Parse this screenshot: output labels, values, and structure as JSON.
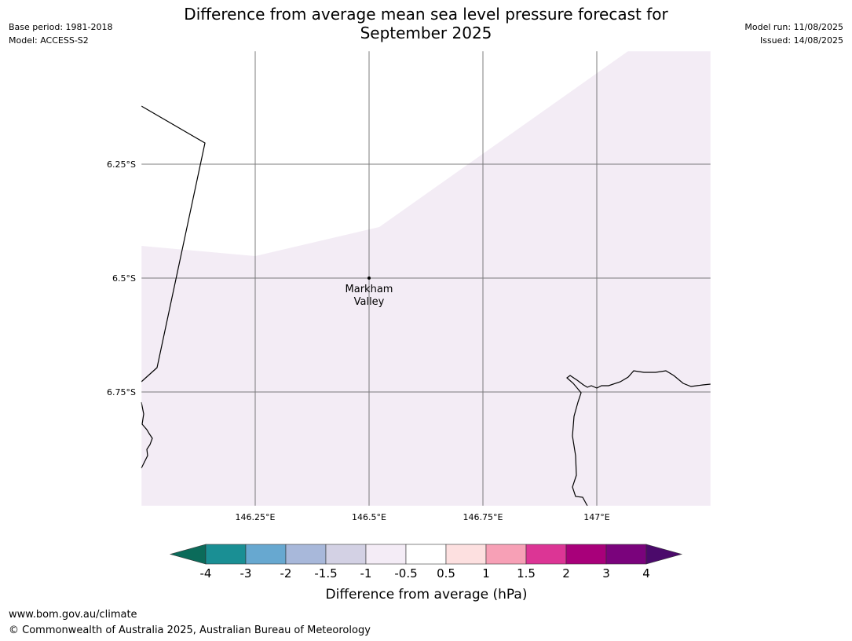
{
  "header": {
    "title_line1": "Difference from average mean sea level pressure forecast for",
    "title_line2": "September 2025",
    "base_period": "Base period: 1981-2018",
    "model": "Model: ACCESS-S2",
    "model_run": "Model run: 11/08/2025",
    "issued": "Issued: 14/08/2025"
  },
  "map": {
    "lon_labels": [
      "146.25°E",
      "146.5°E",
      "146.75°E",
      "147°E"
    ],
    "lat_labels": [
      "6.25°S",
      "6.5°S",
      "6.75°S"
    ],
    "place": {
      "name_line1": "Markham",
      "name_line2": "Valley"
    },
    "colors": {
      "anomaly_fill": "#f3ecf5",
      "gridline": "#666666",
      "coastline": "#000000"
    }
  },
  "colorbar": {
    "title": "Difference from average (hPa)",
    "tick_labels": [
      "-4",
      "-3",
      "-2",
      "-1.5",
      "-1",
      "-0.5",
      "0.5",
      "1",
      "1.5",
      "2",
      "3",
      "4"
    ],
    "under_color": "#0b6b5a",
    "over_color": "#4b0a6b",
    "colors": [
      "#1a8f94",
      "#67a8d0",
      "#a8b8da",
      "#d3d1e4",
      "#f4ecf6",
      "#ffffff",
      "#fde0e0",
      "#f7a0b6",
      "#dc3595",
      "#a8007a",
      "#7a037c"
    ]
  },
  "footer": {
    "url": "www.bom.gov.au/climate",
    "copyright": "© Commonwealth of Australia 2025, Australian Bureau of Meteorology"
  }
}
